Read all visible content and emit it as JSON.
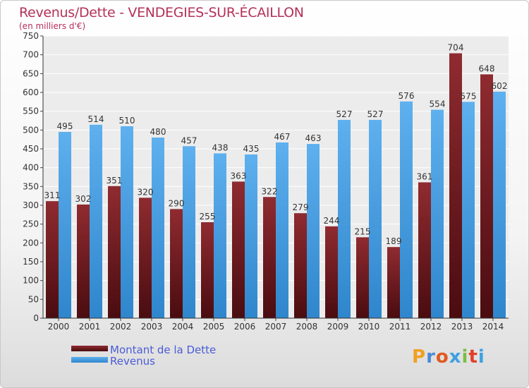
{
  "title": "Revenus/Dette - VENDEGIES-SUR-ÉCAILLON",
  "subtitle": "(en milliers d'€)",
  "logo": "Proxiti",
  "colors": {
    "debt": "#7a1f24",
    "revenue": "#3f9be0",
    "title": "#b5305a",
    "legend_text": "#4a5cd6"
  },
  "chart_data": {
    "type": "bar",
    "categories": [
      "2000",
      "2001",
      "2002",
      "2003",
      "2004",
      "2005",
      "2006",
      "2007",
      "2008",
      "2009",
      "2010",
      "2011",
      "2012",
      "2013",
      "2014"
    ],
    "series": [
      {
        "name": "Montant de la Dette",
        "values": [
          311,
          302,
          351,
          320,
          290,
          255,
          363,
          322,
          279,
          244,
          215,
          189,
          361,
          704,
          648
        ]
      },
      {
        "name": "Revenus",
        "values": [
          495,
          514,
          510,
          480,
          457,
          438,
          435,
          467,
          463,
          527,
          527,
          576,
          554,
          575,
          602
        ]
      }
    ],
    "ylim": [
      0,
      750
    ],
    "yticks": [
      0,
      50,
      100,
      150,
      200,
      250,
      300,
      350,
      400,
      450,
      500,
      550,
      600,
      650,
      700,
      750
    ],
    "grid": true,
    "legend": "bottom-left"
  }
}
